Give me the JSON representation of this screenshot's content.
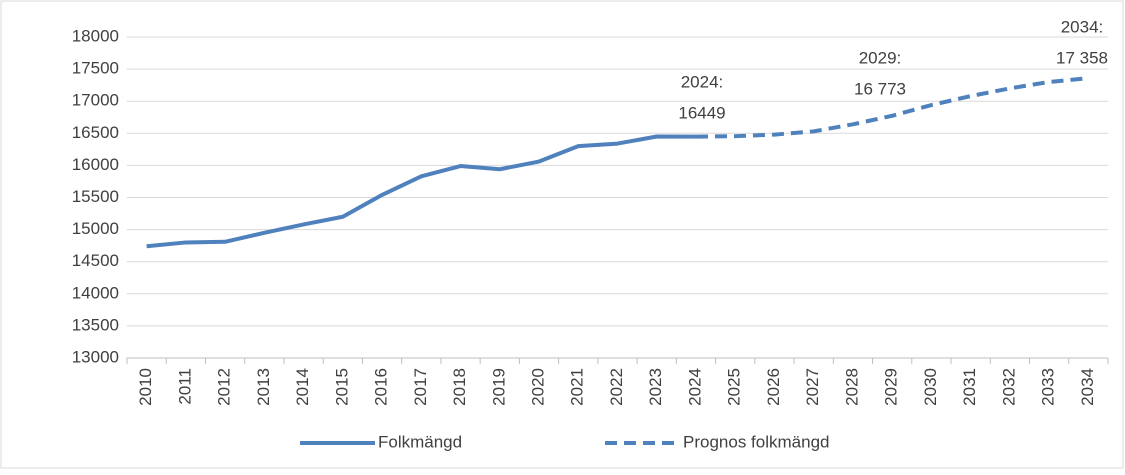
{
  "chart_data": {
    "type": "line",
    "categories": [
      "2010",
      "2011",
      "2012",
      "2013",
      "2014",
      "2015",
      "2016",
      "2017",
      "2018",
      "2019",
      "2020",
      "2021",
      "2022",
      "2023",
      "2024",
      "2025",
      "2026",
      "2027",
      "2028",
      "2029",
      "2030",
      "2031",
      "2032",
      "2033",
      "2034"
    ],
    "series": [
      {
        "name": "Folkmängd",
        "color": "#4f81bd",
        "dash": false,
        "values": [
          14740,
          14800,
          14810,
          14950,
          15080,
          15200,
          15540,
          15830,
          15990,
          15940,
          16060,
          16300,
          16340,
          16450,
          16449,
          null,
          null,
          null,
          null,
          null,
          null,
          null,
          null,
          null,
          null
        ]
      },
      {
        "name": "Prognos folkmängd",
        "color": "#4f81bd",
        "dash": true,
        "values": [
          null,
          null,
          null,
          null,
          null,
          null,
          null,
          null,
          null,
          null,
          null,
          null,
          null,
          null,
          16449,
          16455,
          16480,
          16530,
          16640,
          16773,
          16940,
          17080,
          17200,
          17300,
          17358
        ]
      }
    ],
    "annotations": [
      {
        "lines": [
          "2024:",
          "16449"
        ]
      },
      {
        "lines": [
          "2029:",
          "16 773"
        ]
      },
      {
        "lines": [
          "2034:",
          "17 358"
        ]
      }
    ],
    "ylim": [
      13000,
      18000
    ],
    "yticks": [
      13000,
      13500,
      14000,
      14500,
      15000,
      15500,
      16000,
      16500,
      17000,
      17500,
      18000
    ],
    "grid": true,
    "legend": "bottom"
  }
}
